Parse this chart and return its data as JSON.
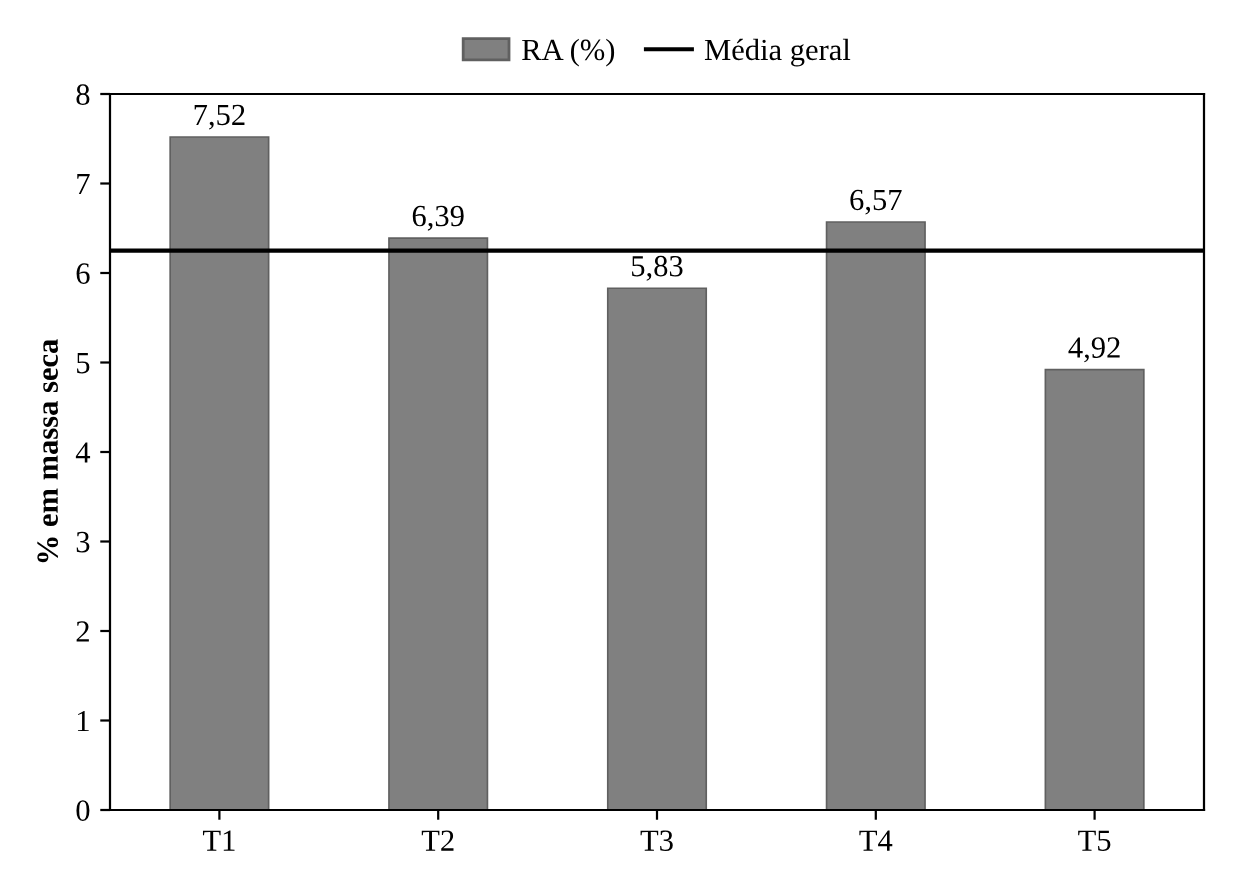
{
  "chart_data": {
    "type": "bar",
    "ylabel": "% em massa seca",
    "categories": [
      "T1",
      "T2",
      "T3",
      "T4",
      "T5"
    ],
    "series": [
      {
        "name": "RA (%)",
        "color": "#808080",
        "values": [
          7.52,
          6.39,
          5.83,
          6.57,
          4.92
        ],
        "value_labels": [
          "7,52",
          "6,39",
          "5,83",
          "6,57",
          "4,92"
        ]
      }
    ],
    "ref_lines": [
      {
        "axis": "y",
        "value": 6.25,
        "label": "Média geral",
        "color": "#000000",
        "line_style": "solid"
      }
    ],
    "ylim": [
      0,
      8
    ],
    "yticks": [
      0,
      1,
      2,
      3,
      4,
      5,
      6,
      7,
      8
    ],
    "grid": false,
    "legend": "top"
  }
}
